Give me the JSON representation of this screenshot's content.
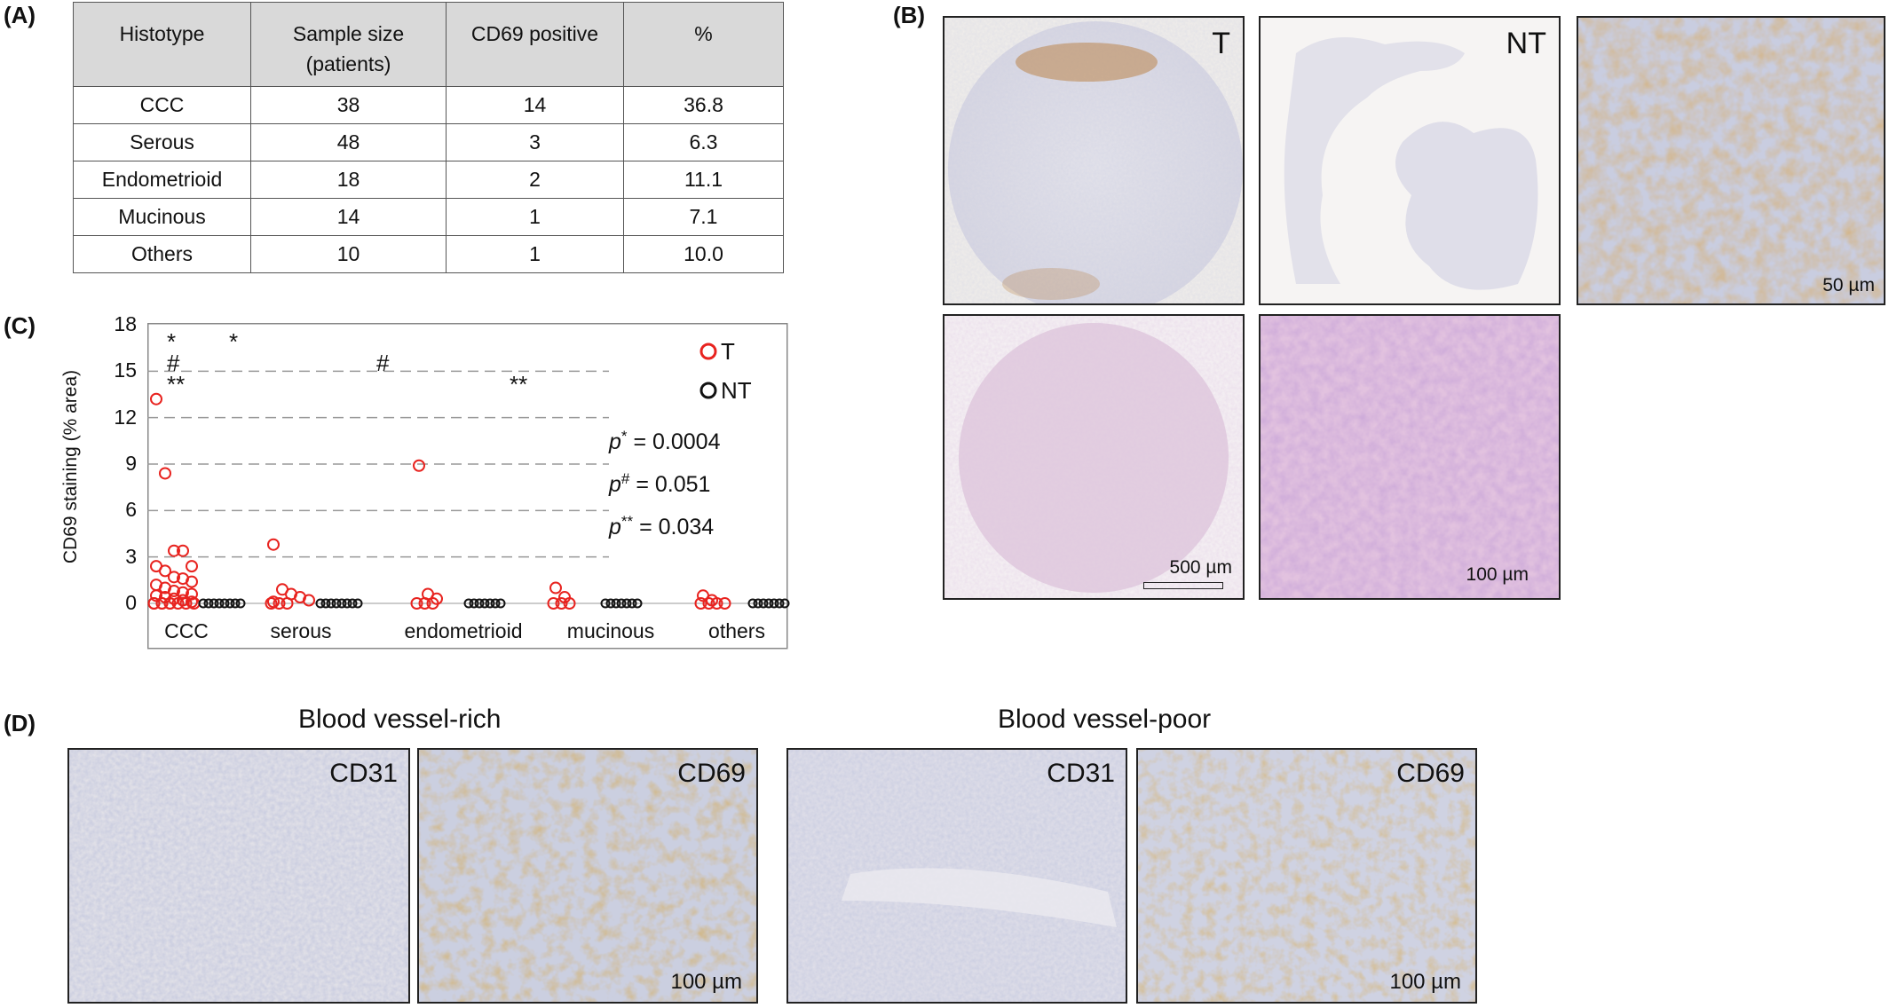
{
  "panels": {
    "A": "(A)",
    "B": "(B)",
    "C": "(C)",
    "D": "(D)"
  },
  "table": {
    "headers": [
      "Histotype",
      "Sample size\n(patients)",
      "CD69 positive",
      "%"
    ],
    "rows": [
      [
        "CCC",
        "38",
        "14",
        "36.8"
      ],
      [
        "Serous",
        "48",
        "3",
        "6.3"
      ],
      [
        "Endometrioid",
        "18",
        "2",
        "11.1"
      ],
      [
        "Mucinous",
        "14",
        "1",
        "7.1"
      ],
      [
        "Others",
        "10",
        "1",
        "10.0"
      ]
    ]
  },
  "panelB": {
    "t_label": "T",
    "nt_label": "NT",
    "scale_50": "50 µm",
    "scale_500": "500 µm",
    "scale_100": "100 µm"
  },
  "panelD": {
    "rich_title": "Blood vessel-rich",
    "poor_title": "Blood vessel-poor",
    "cd31": "CD31",
    "cd69": "CD69",
    "scale_100": "100 µm"
  },
  "colors": {
    "tumor": "#e8231f",
    "nontumor": "#111111",
    "ihc_brown": "#b5742a",
    "hematoxylin": "#9aa6cf",
    "he_pink": "#d6a9d0"
  },
  "chart_data": {
    "type": "scatter",
    "ylabel": "CD69 staining (% area)",
    "ylim": [
      0,
      18
    ],
    "yticks": [
      0,
      3,
      6,
      9,
      12,
      15,
      18
    ],
    "grid": "dashed horizontal",
    "categories": [
      "CCC",
      "serous",
      "endometrioid",
      "mucinous",
      "others"
    ],
    "series": [
      {
        "name": "T",
        "color": "#e8231f",
        "values": [
          [
            13.2,
            8.4,
            3.4,
            3.4,
            2.4,
            2.4,
            2.1,
            1.7,
            1.6,
            1.4,
            1.2,
            1.0,
            0.8,
            0.7,
            0.6,
            0.5,
            0.4,
            0.3,
            0.2,
            0.1,
            0,
            0,
            0,
            0,
            0,
            0,
            0,
            0,
            0
          ],
          [
            3.8,
            0.9,
            0.6,
            0.4,
            0.2,
            0.1,
            0,
            0,
            0
          ],
          [
            8.9,
            0.6,
            0.3,
            0,
            0,
            0
          ],
          [
            1.0,
            0.4,
            0,
            0,
            0
          ],
          [
            0.5,
            0.2,
            0,
            0,
            0,
            0
          ]
        ]
      },
      {
        "name": "NT",
        "color": "#111111",
        "values": [
          [
            0,
            0,
            0,
            0,
            0,
            0,
            0,
            0
          ],
          [
            0,
            0,
            0,
            0,
            0,
            0,
            0,
            0
          ],
          [
            0,
            0,
            0,
            0,
            0,
            0,
            0
          ],
          [
            0,
            0,
            0,
            0,
            0,
            0,
            0
          ],
          [
            0,
            0,
            0,
            0,
            0,
            0,
            0
          ]
        ]
      }
    ],
    "annotations": [
      {
        "text": "*",
        "category": "CCC",
        "y": 17.1
      },
      {
        "text": "#",
        "category": "CCC",
        "y": 15.4
      },
      {
        "text": "**",
        "category": "CCC",
        "y": 13.7
      },
      {
        "text": "*",
        "category": "serous",
        "y": 17.1
      },
      {
        "text": "#",
        "category": "endometrioid",
        "y": 15.4
      },
      {
        "text": "**",
        "category": "mucinous",
        "y": 13.7
      }
    ],
    "pvalues": [
      {
        "prefix": "p",
        "sup": "*",
        "text": " = 0.0004"
      },
      {
        "prefix": "p",
        "sup": "#",
        "text": " = 0.051"
      },
      {
        "prefix": "p",
        "sup": "**",
        "text": " = 0.034"
      }
    ],
    "legend": {
      "placement": "top-right",
      "entries": [
        "T",
        "NT"
      ]
    }
  }
}
